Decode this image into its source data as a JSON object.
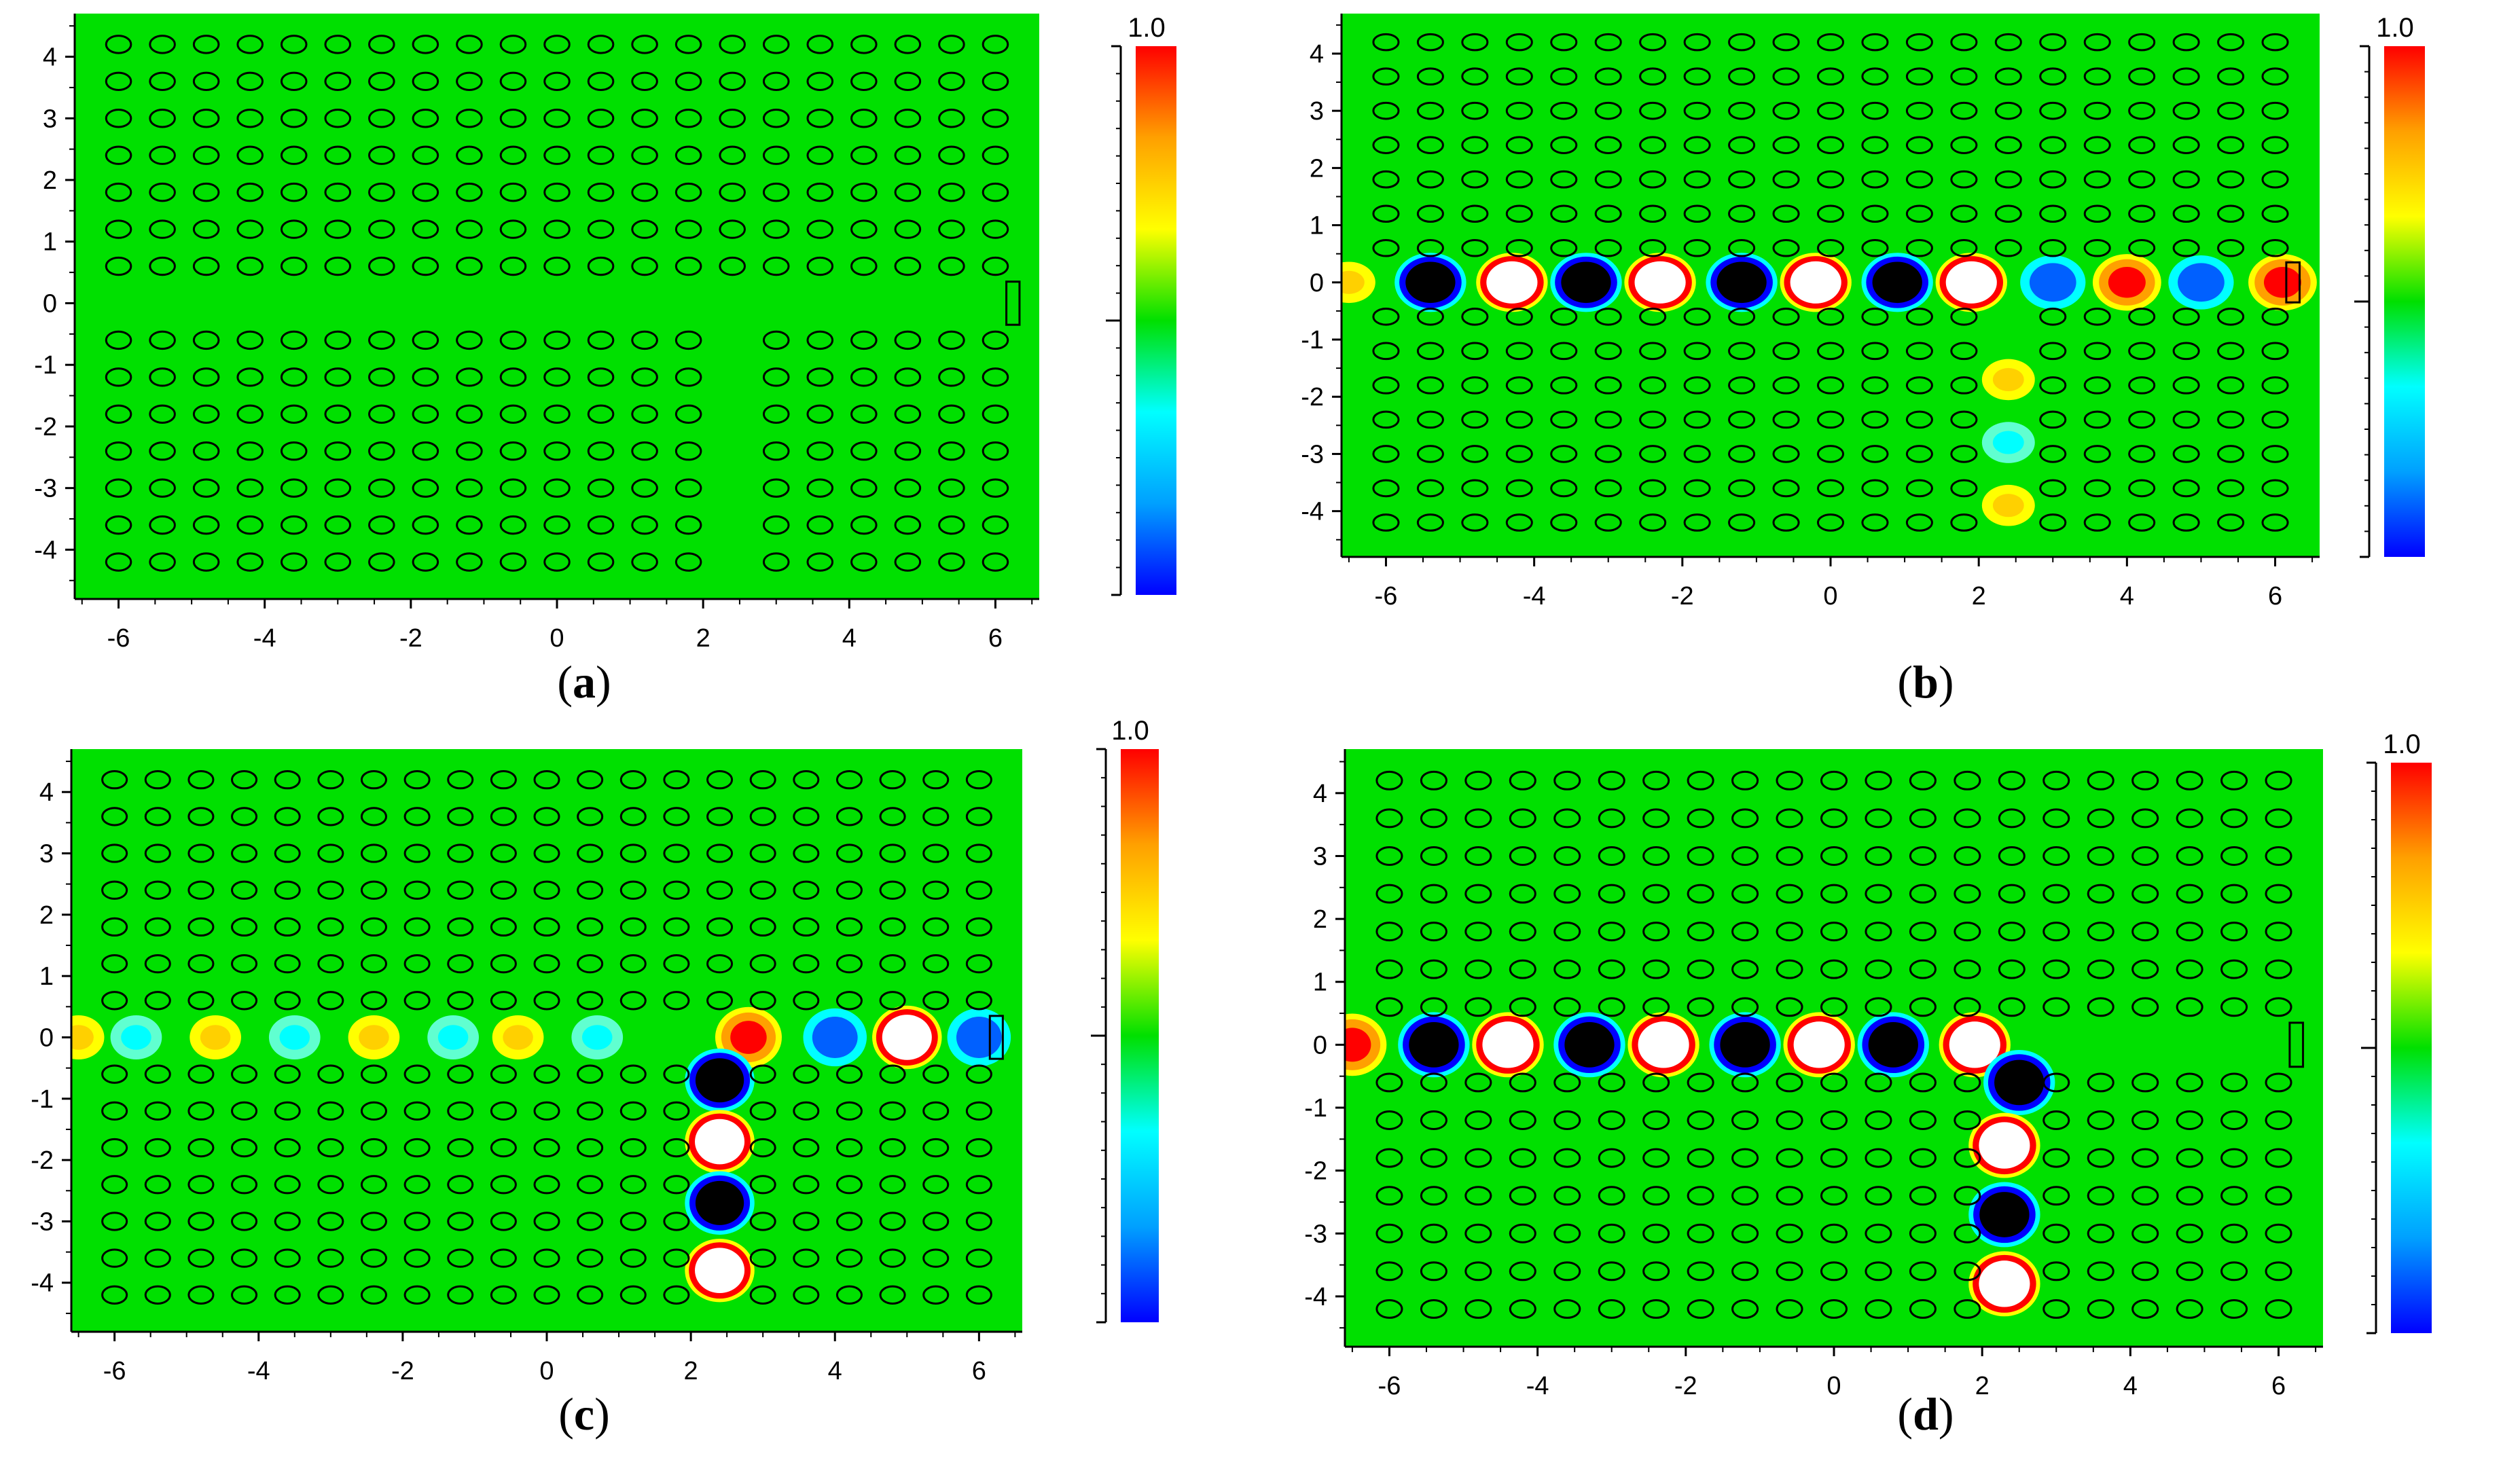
{
  "figure": {
    "background": "#ffffff",
    "field_colors": [
      "#0000ff",
      "#00a0ff",
      "#00ffff",
      "#00e000",
      "#ffff00",
      "#ffa000",
      "#ff0000"
    ],
    "rod_stroke": "#000000"
  },
  "panels": [
    {
      "id": "a",
      "caption": "a",
      "colorbar_label": "1.0",
      "xticks": [
        "-6",
        "-4",
        "-2",
        "0",
        "2",
        "4",
        "6"
      ],
      "yticks": [
        "4",
        "3",
        "2",
        "1",
        "0",
        "-1",
        "-2",
        "-3",
        "-4"
      ]
    },
    {
      "id": "b",
      "caption": "b",
      "colorbar_label": "1.0",
      "xticks": [
        "-6",
        "-4",
        "-2",
        "0",
        "2",
        "4",
        "6"
      ],
      "yticks": [
        "4",
        "3",
        "2",
        "1",
        "0",
        "-1",
        "-2",
        "-3",
        "-4"
      ]
    },
    {
      "id": "c",
      "caption": "c",
      "colorbar_label": "1.0",
      "xticks": [
        "-6",
        "-4",
        "-2",
        "0",
        "2",
        "4",
        "6"
      ],
      "yticks": [
        "4",
        "3",
        "2",
        "1",
        "0",
        "-1",
        "-2",
        "-3",
        "-4"
      ]
    },
    {
      "id": "d",
      "caption": "d",
      "colorbar_label": "1.0",
      "xticks": [
        "-6",
        "-4",
        "-2",
        "0",
        "2",
        "4",
        "6"
      ],
      "yticks": [
        "4",
        "3",
        "2",
        "1",
        "0",
        "-1",
        "-2",
        "-3",
        "-4"
      ]
    }
  ],
  "chart_data": [
    {
      "type": "heatmap",
      "panel": "a",
      "xlim": [
        -6.6,
        6.6
      ],
      "ylim": [
        -4.8,
        4.7
      ],
      "colorbar_max": 1.0,
      "rods": {
        "x_range": [
          -6,
          6
        ],
        "pitch": 0.6,
        "rows_y": [
          4.2,
          3.6,
          3.0,
          2.4,
          1.8,
          1.2,
          0.6,
          -0.6,
          -1.2,
          -1.8,
          -2.4,
          -3.0,
          -3.6,
          -4.2
        ],
        "removed_lower_columns": [
          2.4
        ]
      },
      "field": []
    },
    {
      "type": "heatmap",
      "panel": "b",
      "xlim": [
        -6.6,
        6.6
      ],
      "ylim": [
        -4.8,
        4.7
      ],
      "colorbar_max": 1.0,
      "rods": {
        "x_range": [
          -6,
          6
        ],
        "pitch": 0.6,
        "rows_y": [
          4.2,
          3.6,
          3.0,
          2.4,
          1.8,
          1.2,
          0.6,
          -0.6,
          -1.2,
          -1.8,
          -2.4,
          -3.0,
          -3.6,
          -4.2
        ],
        "removed_lower_columns": [
          2.4
        ]
      },
      "field": [
        {
          "x": -6.5,
          "y": 0,
          "v": 0.5
        },
        {
          "x": -5.4,
          "y": 0,
          "v": -1.0
        },
        {
          "x": -4.3,
          "y": 0,
          "v": 1.0
        },
        {
          "x": -3.3,
          "y": 0,
          "v": -1.0
        },
        {
          "x": -2.3,
          "y": 0,
          "v": 1.0
        },
        {
          "x": -1.2,
          "y": 0,
          "v": -1.0
        },
        {
          "x": -0.2,
          "y": 0,
          "v": 1.0
        },
        {
          "x": 0.9,
          "y": 0,
          "v": -1.0
        },
        {
          "x": 1.9,
          "y": 0,
          "v": 1.0
        },
        {
          "x": 3.0,
          "y": 0,
          "v": -0.8
        },
        {
          "x": 4.0,
          "y": 0,
          "v": 0.9
        },
        {
          "x": 5.0,
          "y": 0,
          "v": -0.7
        },
        {
          "x": 6.1,
          "y": 0,
          "v": 0.9
        },
        {
          "x": 2.4,
          "y": -1.7,
          "v": 0.5
        },
        {
          "x": 2.4,
          "y": -2.8,
          "v": -0.3
        },
        {
          "x": 2.4,
          "y": -3.9,
          "v": 0.5
        }
      ]
    },
    {
      "type": "heatmap",
      "panel": "c",
      "xlim": [
        -6.6,
        6.6
      ],
      "ylim": [
        -4.8,
        4.7
      ],
      "colorbar_max": 1.0,
      "rods": {
        "x_range": [
          -6,
          6
        ],
        "pitch": 0.6,
        "rows_y": [
          4.2,
          3.6,
          3.0,
          2.4,
          1.8,
          1.2,
          0.6,
          -0.6,
          -1.2,
          -1.8,
          -2.4,
          -3.0,
          -3.6,
          -4.2
        ],
        "removed_lower_columns": [
          2.4
        ]
      },
      "field": [
        {
          "x": -6.5,
          "y": 0,
          "v": 0.4
        },
        {
          "x": -5.7,
          "y": 0,
          "v": -0.2
        },
        {
          "x": -4.6,
          "y": 0,
          "v": 0.4
        },
        {
          "x": -3.5,
          "y": 0,
          "v": -0.2
        },
        {
          "x": -2.4,
          "y": 0,
          "v": 0.4
        },
        {
          "x": -1.3,
          "y": 0,
          "v": -0.2
        },
        {
          "x": -0.4,
          "y": 0,
          "v": 0.4
        },
        {
          "x": 0.7,
          "y": 0,
          "v": -0.2
        },
        {
          "x": 2.8,
          "y": 0,
          "v": 0.8
        },
        {
          "x": 4.0,
          "y": 0,
          "v": -0.8
        },
        {
          "x": 5.0,
          "y": 0,
          "v": 1.0
        },
        {
          "x": 6.0,
          "y": 0,
          "v": -0.7
        },
        {
          "x": 2.4,
          "y": -0.7,
          "v": -1.0
        },
        {
          "x": 2.4,
          "y": -1.7,
          "v": 1.0
        },
        {
          "x": 2.4,
          "y": -2.7,
          "v": -1.0
        },
        {
          "x": 2.4,
          "y": -3.8,
          "v": 1.0
        }
      ]
    },
    {
      "type": "heatmap",
      "panel": "d",
      "xlim": [
        -6.6,
        6.6
      ],
      "ylim": [
        -4.8,
        4.7
      ],
      "colorbar_max": 1.0,
      "rods": {
        "x_range": [
          -6,
          6
        ],
        "pitch": 0.6,
        "rows_y": [
          4.2,
          3.6,
          3.0,
          2.4,
          1.8,
          1.2,
          0.6,
          -0.6,
          -1.2,
          -1.8,
          -2.4,
          -3.0,
          -3.6,
          -4.2
        ],
        "removed_lower_columns": [
          2.4
        ]
      },
      "field": [
        {
          "x": -6.5,
          "y": 0,
          "v": 0.8
        },
        {
          "x": -5.4,
          "y": 0,
          "v": -1.0
        },
        {
          "x": -4.4,
          "y": 0,
          "v": 1.0
        },
        {
          "x": -3.3,
          "y": 0,
          "v": -1.0
        },
        {
          "x": -2.3,
          "y": 0,
          "v": 1.0
        },
        {
          "x": -1.2,
          "y": 0,
          "v": -1.0
        },
        {
          "x": -0.2,
          "y": 0,
          "v": 1.0
        },
        {
          "x": 0.8,
          "y": 0,
          "v": -1.0
        },
        {
          "x": 1.9,
          "y": 0,
          "v": 1.0
        },
        {
          "x": 2.5,
          "y": -0.6,
          "v": -1.0
        },
        {
          "x": 2.3,
          "y": -1.6,
          "v": 1.0
        },
        {
          "x": 2.3,
          "y": -2.7,
          "v": -1.0
        },
        {
          "x": 2.3,
          "y": -3.8,
          "v": 1.0
        }
      ]
    }
  ]
}
